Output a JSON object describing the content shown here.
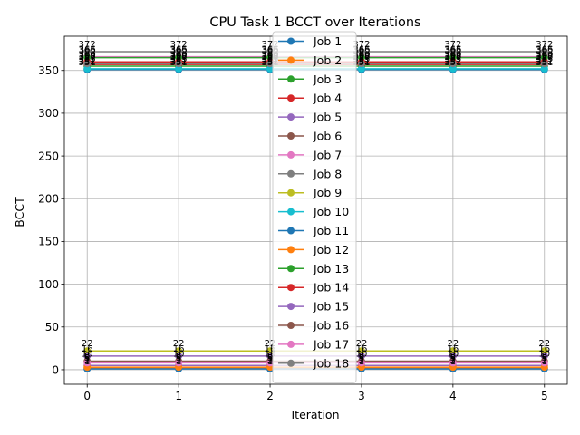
{
  "chart_data": {
    "type": "line",
    "title": "CPU Task 1 BCCT over Iterations",
    "xlabel": "Iteration",
    "ylabel": "BCCT",
    "x": [
      0,
      1,
      2,
      3,
      4,
      5
    ],
    "xlim": [
      -0.25,
      5.25
    ],
    "ylim": [
      -17,
      390
    ],
    "xticks": [
      0,
      1,
      2,
      3,
      4,
      5
    ],
    "yticks": [
      0,
      50,
      100,
      150,
      200,
      250,
      300,
      350
    ],
    "grid": true,
    "legend_position": "center",
    "series": [
      {
        "name": "Job 1",
        "color": "#1f77b4",
        "values": [
          351,
          351,
          351,
          351,
          351,
          351
        ]
      },
      {
        "name": "Job 2",
        "color": "#ff7f0e",
        "values": [
          2,
          2,
          2,
          2,
          2,
          2
        ]
      },
      {
        "name": "Job 3",
        "color": "#2ca02c",
        "values": [
          355,
          355,
          355,
          355,
          355,
          355
        ]
      },
      {
        "name": "Job 4",
        "color": "#d62728",
        "values": [
          357,
          357,
          357,
          357,
          357,
          357
        ]
      },
      {
        "name": "Job 5",
        "color": "#9467bd",
        "values": [
          5,
          5,
          5,
          5,
          5,
          5
        ]
      },
      {
        "name": "Job 6",
        "color": "#8c564b",
        "values": [
          360,
          360,
          360,
          360,
          360,
          360
        ]
      },
      {
        "name": "Job 7",
        "color": "#e377c2",
        "values": [
          366,
          366,
          366,
          366,
          366,
          366
        ]
      },
      {
        "name": "Job 8",
        "color": "#7f7f7f",
        "values": [
          372,
          372,
          372,
          372,
          372,
          372
        ]
      },
      {
        "name": "Job 9",
        "color": "#bcbd22",
        "values": [
          22,
          22,
          22,
          22,
          22,
          22
        ]
      },
      {
        "name": "Job 10",
        "color": "#17becf",
        "values": [
          352,
          352,
          352,
          352,
          352,
          352
        ]
      },
      {
        "name": "Job 11",
        "color": "#1f77b4",
        "values": [
          1,
          1,
          1,
          1,
          1,
          1
        ]
      },
      {
        "name": "Job 12",
        "color": "#ff7f0e",
        "values": [
          3,
          3,
          3,
          3,
          3,
          3
        ]
      },
      {
        "name": "Job 13",
        "color": "#2ca02c",
        "values": [
          365,
          365,
          365,
          365,
          365,
          365
        ]
      },
      {
        "name": "Job 14",
        "color": "#d62728",
        "values": [
          360,
          360,
          360,
          360,
          360,
          360
        ]
      },
      {
        "name": "Job 15",
        "color": "#9467bd",
        "values": [
          16,
          16,
          16,
          16,
          16,
          16
        ]
      },
      {
        "name": "Job 16",
        "color": "#8c564b",
        "values": [
          10,
          10,
          10,
          10,
          10,
          10
        ]
      },
      {
        "name": "Job 17",
        "color": "#e377c2",
        "values": [
          8,
          8,
          8,
          8,
          8,
          8
        ]
      },
      {
        "name": "Job 18",
        "color": "#7f7f7f",
        "values": [
          358,
          358,
          358,
          358,
          358,
          358
        ]
      }
    ]
  }
}
